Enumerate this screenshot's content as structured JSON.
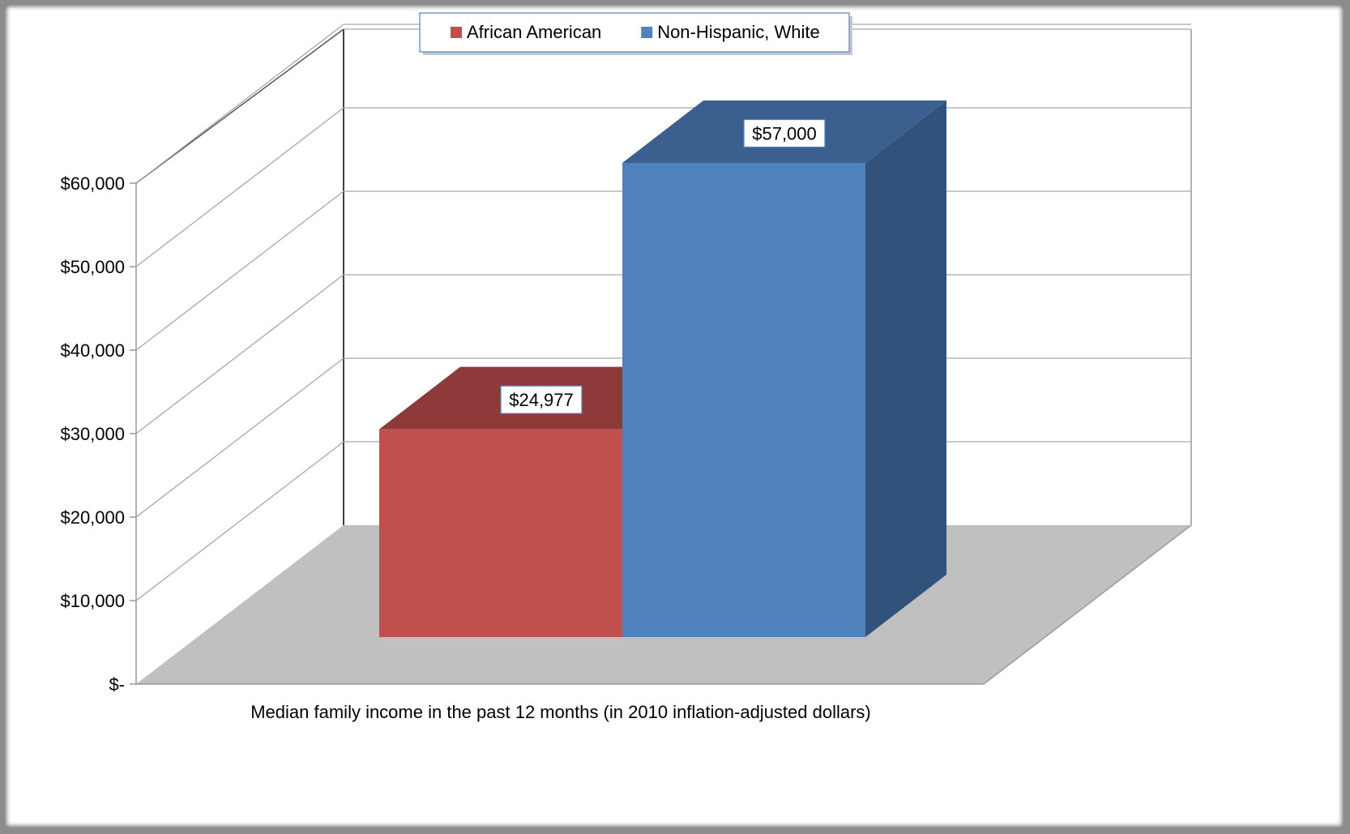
{
  "chart_data": {
    "type": "bar",
    "style": "3d-clustered-column",
    "categories": [
      "Median family income in the past 12 months (in 2010 inflation-adjusted dollars)"
    ],
    "series": [
      {
        "name": "African American",
        "values": [
          24977
        ],
        "color": "#c0504d",
        "top_color": "#8e3a3a",
        "data_label": "$24,977"
      },
      {
        "name": "Non-Hispanic, White",
        "values": [
          57000
        ],
        "color": "#4f81bd",
        "top_color": "#3b5f8e",
        "side_color": "#31527a",
        "data_label": "$57,000"
      }
    ],
    "xlabel": "Median family income in the past 12 months (in 2010 inflation-adjusted dollars)",
    "ylim": [
      0,
      60000
    ],
    "yticks": [
      {
        "value": 0,
        "label": "$-"
      },
      {
        "value": 10000,
        "label": "$10,000"
      },
      {
        "value": 20000,
        "label": "$20,000"
      },
      {
        "value": 30000,
        "label": "$30,000"
      },
      {
        "value": 40000,
        "label": "$40,000"
      },
      {
        "value": 50000,
        "label": "$50,000"
      },
      {
        "value": 60000,
        "label": "$60,000"
      }
    ],
    "grid": true,
    "legend": {
      "position": "top-center"
    },
    "floor_color": "#c0c0c0"
  }
}
